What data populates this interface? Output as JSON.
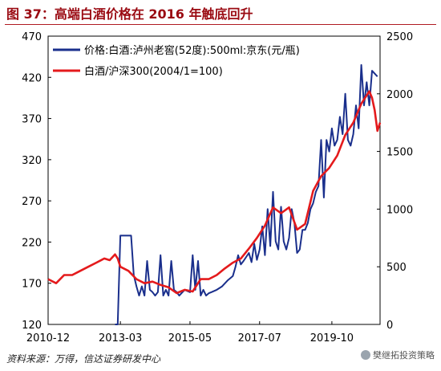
{
  "figure": {
    "title": "图 37：高端白酒价格在 2016 年触底回升",
    "source": "资料来源：万得，信达证券研发中心",
    "watermark": "樊继拓投资策略"
  },
  "chart_data": {
    "type": "line",
    "x_tick_labels": [
      "2010-12",
      "2013-03",
      "2015-05",
      "2017-07",
      "2019-10"
    ],
    "x_range": [
      "2010-12",
      "2021-04"
    ],
    "y_left": {
      "ticks": [
        120,
        170,
        220,
        270,
        320,
        370,
        420,
        470
      ],
      "lim": [
        120,
        470
      ]
    },
    "y_right": {
      "ticks": [
        0,
        500,
        1000,
        1500,
        2000,
        2500
      ],
      "lim": [
        0,
        2500
      ]
    },
    "grid": false,
    "legend_position": "top-left",
    "series": [
      {
        "name": "价格:白酒:泸州老窖(52度):500ml:京东(元/瓶)",
        "axis": "right",
        "color": "#1a2f8c",
        "points": [
          [
            "2013-01",
            0
          ],
          [
            "2013-02",
            0
          ],
          [
            "2013-03",
            770
          ],
          [
            "2013-05",
            770
          ],
          [
            "2013-07",
            770
          ],
          [
            "2013-08",
            430
          ],
          [
            "2013-09",
            330
          ],
          [
            "2013-10",
            250
          ],
          [
            "2013-11",
            330
          ],
          [
            "2013-12",
            250
          ],
          [
            "2014-01",
            550
          ],
          [
            "2014-02",
            300
          ],
          [
            "2014-03",
            280
          ],
          [
            "2014-04",
            250
          ],
          [
            "2014-05",
            280
          ],
          [
            "2014-06",
            600
          ],
          [
            "2014-07",
            250
          ],
          [
            "2014-08",
            300
          ],
          [
            "2014-09",
            250
          ],
          [
            "2014-10",
            550
          ],
          [
            "2014-11",
            300
          ],
          [
            "2014-12",
            280
          ],
          [
            "2015-01",
            250
          ],
          [
            "2015-03",
            300
          ],
          [
            "2015-05",
            280
          ],
          [
            "2015-06",
            600
          ],
          [
            "2015-07",
            300
          ],
          [
            "2015-08",
            550
          ],
          [
            "2015-09",
            250
          ],
          [
            "2015-10",
            300
          ],
          [
            "2015-11",
            250
          ],
          [
            "2015-12",
            270
          ],
          [
            "2016-01",
            280
          ],
          [
            "2016-03",
            300
          ],
          [
            "2016-05",
            330
          ],
          [
            "2016-07",
            380
          ],
          [
            "2016-09",
            420
          ],
          [
            "2016-10",
            500
          ],
          [
            "2016-11",
            600
          ],
          [
            "2016-12",
            520
          ],
          [
            "2017-01",
            550
          ],
          [
            "2017-03",
            620
          ],
          [
            "2017-04",
            540
          ],
          [
            "2017-05",
            700
          ],
          [
            "2017-06",
            560
          ],
          [
            "2017-07",
            650
          ],
          [
            "2017-08",
            850
          ],
          [
            "2017-09",
            600
          ],
          [
            "2017-10",
            1000
          ],
          [
            "2017-11",
            680
          ],
          [
            "2017-12",
            1150
          ],
          [
            "2018-01",
            720
          ],
          [
            "2018-02",
            650
          ],
          [
            "2018-03",
            1020
          ],
          [
            "2018-04",
            720
          ],
          [
            "2018-05",
            650
          ],
          [
            "2018-06",
            750
          ],
          [
            "2018-07",
            1000
          ],
          [
            "2018-08",
            880
          ],
          [
            "2018-09",
            620
          ],
          [
            "2018-10",
            650
          ],
          [
            "2018-11",
            820
          ],
          [
            "2018-12",
            820
          ],
          [
            "2019-01",
            880
          ],
          [
            "2019-02",
            1000
          ],
          [
            "2019-03",
            1050
          ],
          [
            "2019-04",
            1150
          ],
          [
            "2019-05",
            1200
          ],
          [
            "2019-06",
            1600
          ],
          [
            "2019-07",
            1100
          ],
          [
            "2019-08",
            1600
          ],
          [
            "2019-09",
            1500
          ],
          [
            "2019-10",
            1700
          ],
          [
            "2019-11",
            1550
          ],
          [
            "2019-12",
            1600
          ],
          [
            "2020-01",
            1800
          ],
          [
            "2020-02",
            1650
          ],
          [
            "2020-03",
            2000
          ],
          [
            "2020-04",
            1600
          ],
          [
            "2020-05",
            1550
          ],
          [
            "2020-06",
            1650
          ],
          [
            "2020-07",
            1900
          ],
          [
            "2020-08",
            1700
          ],
          [
            "2020-09",
            2250
          ],
          [
            "2020-10",
            1900
          ],
          [
            "2020-11",
            2100
          ],
          [
            "2020-12",
            1900
          ],
          [
            "2021-01",
            2200
          ],
          [
            "2021-03",
            2150
          ]
        ]
      },
      {
        "name": "白酒/沪深300(2004/1=100)",
        "axis": "left",
        "color": "#e41a1c",
        "points": [
          [
            "2010-12",
            175
          ],
          [
            "2011-03",
            170
          ],
          [
            "2011-06",
            180
          ],
          [
            "2011-09",
            180
          ],
          [
            "2011-12",
            185
          ],
          [
            "2012-03",
            190
          ],
          [
            "2012-06",
            195
          ],
          [
            "2012-09",
            200
          ],
          [
            "2012-11",
            198
          ],
          [
            "2013-01",
            205
          ],
          [
            "2013-02",
            200
          ],
          [
            "2013-03",
            190
          ],
          [
            "2013-06",
            185
          ],
          [
            "2013-09",
            175
          ],
          [
            "2013-12",
            170
          ],
          [
            "2014-03",
            172
          ],
          [
            "2014-06",
            168
          ],
          [
            "2014-09",
            165
          ],
          [
            "2014-12",
            158
          ],
          [
            "2015-03",
            162
          ],
          [
            "2015-06",
            160
          ],
          [
            "2015-09",
            175
          ],
          [
            "2015-12",
            175
          ],
          [
            "2016-03",
            180
          ],
          [
            "2016-06",
            188
          ],
          [
            "2016-09",
            195
          ],
          [
            "2016-12",
            200
          ],
          [
            "2017-03",
            212
          ],
          [
            "2017-06",
            225
          ],
          [
            "2017-09",
            240
          ],
          [
            "2017-12",
            262
          ],
          [
            "2018-03",
            255
          ],
          [
            "2018-06",
            262
          ],
          [
            "2018-09",
            235
          ],
          [
            "2018-12",
            242
          ],
          [
            "2019-03",
            282
          ],
          [
            "2019-06",
            300
          ],
          [
            "2019-09",
            310
          ],
          [
            "2019-12",
            325
          ],
          [
            "2020-03",
            350
          ],
          [
            "2020-06",
            365
          ],
          [
            "2020-09",
            388
          ],
          [
            "2020-12",
            403
          ],
          [
            "2021-01",
            395
          ],
          [
            "2021-02",
            380
          ],
          [
            "2021-03",
            355
          ],
          [
            "2021-04",
            365
          ]
        ]
      }
    ]
  }
}
